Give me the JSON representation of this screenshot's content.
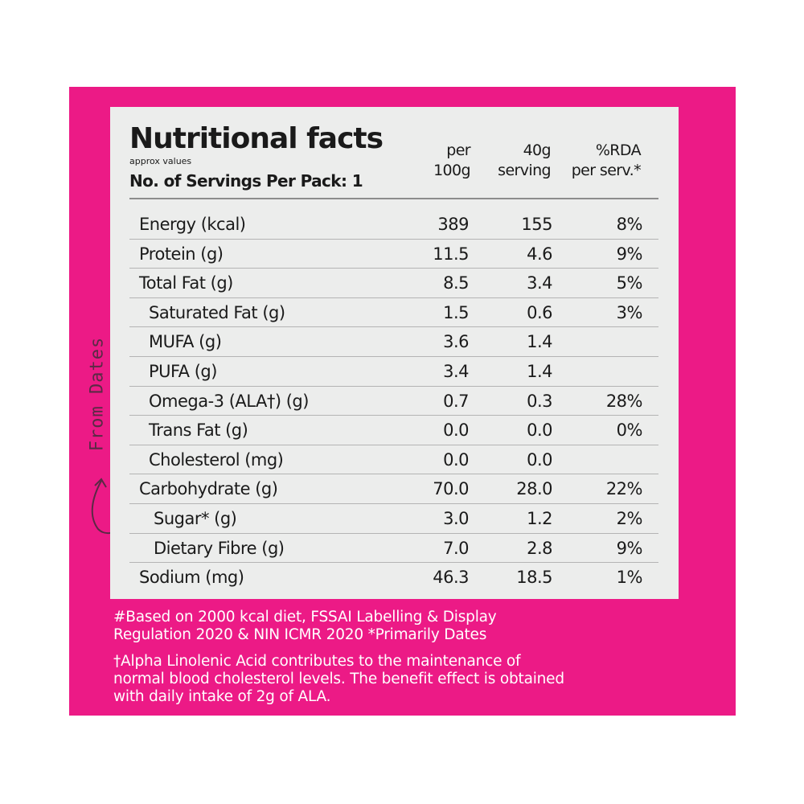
{
  "header": {
    "title": "Nutritional facts",
    "subtitle": "approx values",
    "servings": "No. of Servings Per Pack: 1"
  },
  "columns": [
    [
      "per",
      "100g"
    ],
    [
      "40g",
      "serving"
    ],
    [
      "%RDA",
      "per serv.*"
    ]
  ],
  "rows": [
    {
      "name": "Energy (kcal)",
      "per100g": "389",
      "perServing": "155",
      "rda": "8%",
      "indent": 0
    },
    {
      "name": "Protein (g)",
      "per100g": "11.5",
      "perServing": "4.6",
      "rda": "9%",
      "indent": 0
    },
    {
      "name": "Total Fat (g)",
      "per100g": "8.5",
      "perServing": "3.4",
      "rda": "5%",
      "indent": 0
    },
    {
      "name": "Saturated Fat (g)",
      "per100g": "1.5",
      "perServing": "0.6",
      "rda": "3%",
      "indent": 2
    },
    {
      "name": "MUFA (g)",
      "per100g": "3.6",
      "perServing": "1.4",
      "rda": "",
      "indent": 2
    },
    {
      "name": "PUFA (g)",
      "per100g": "3.4",
      "perServing": "1.4",
      "rda": "",
      "indent": 2
    },
    {
      "name": "Omega-3 (ALA†) (g)",
      "per100g": "0.7",
      "perServing": "0.3",
      "rda": "28%",
      "indent": 2
    },
    {
      "name": "Trans Fat (g)",
      "per100g": "0.0",
      "perServing": "0.0",
      "rda": "0%",
      "indent": 2
    },
    {
      "name": "Cholesterol (mg)",
      "per100g": "0.0",
      "perServing": "0.0",
      "rda": "",
      "indent": 2
    },
    {
      "name": "Carbohydrate (g)",
      "per100g": "70.0",
      "perServing": "28.0",
      "rda": "22%",
      "indent": 0
    },
    {
      "name": "Sugar* (g)",
      "per100g": "3.0",
      "perServing": "1.2",
      "rda": "2%",
      "indent": 1
    },
    {
      "name": "Dietary Fibre (g)",
      "per100g": "7.0",
      "perServing": "2.8",
      "rda": "9%",
      "indent": 1
    },
    {
      "name": "Sodium (mg)",
      "per100g": "46.3",
      "perServing": "18.5",
      "rda": "1%",
      "indent": 0
    }
  ],
  "footnotes": [
    [
      "#Based on 2000 kcal diet, FSSAI Labelling & Display",
      "Regulation 2020 & NIN ICMR 2020 *Primarily Dates"
    ],
    [
      "†Alpha Linolenic Acid contributes to the maintenance of",
      "normal blood cholesterol levels. The benefit effect is obtained",
      "with daily intake of 2g of ALA."
    ]
  ],
  "side_note": "From Dates",
  "colors": {
    "pack_pink": "#ec1a86",
    "panel_grey": "#ecedec",
    "text_dark": "#1a1a1a"
  }
}
